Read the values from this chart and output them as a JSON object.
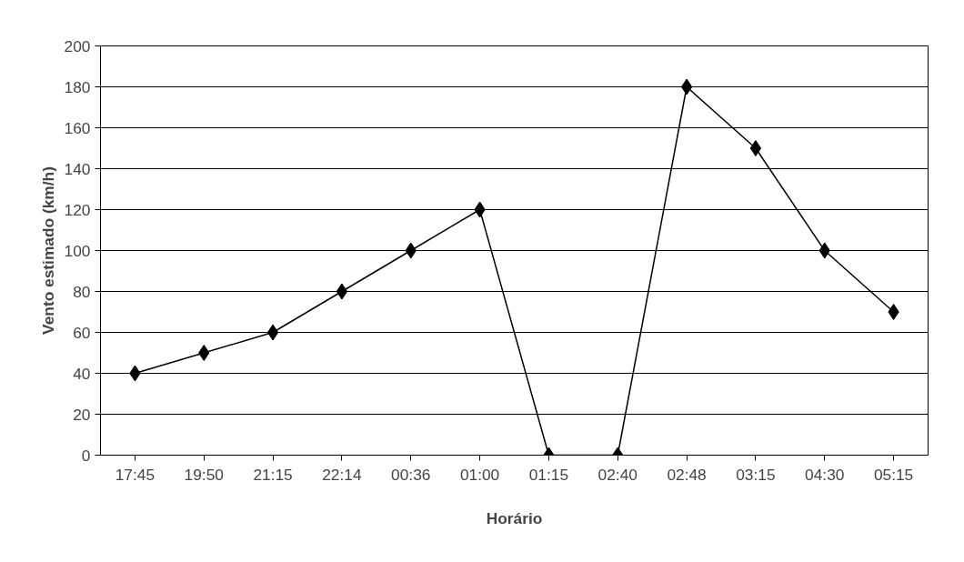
{
  "chart_data": {
    "type": "line",
    "xlabel": "Horário",
    "ylabel": "Vento estimado (km/h)",
    "categories": [
      "17:45",
      "19:50",
      "21:15",
      "22:14",
      "00:36",
      "01:00",
      "01:15",
      "02:40",
      "02:48",
      "03:15",
      "04:30",
      "05:15"
    ],
    "series": [
      {
        "color": "#000000",
        "values": [
          40,
          50,
          60,
          80,
          100,
          120,
          0,
          0,
          180,
          150,
          100,
          70
        ]
      }
    ],
    "ylim": [
      0,
      200
    ],
    "yticks": [
      0,
      20,
      40,
      60,
      80,
      100,
      120,
      140,
      160,
      180,
      200
    ],
    "grid": "y",
    "marker": "diamond",
    "line_style": "solid"
  }
}
